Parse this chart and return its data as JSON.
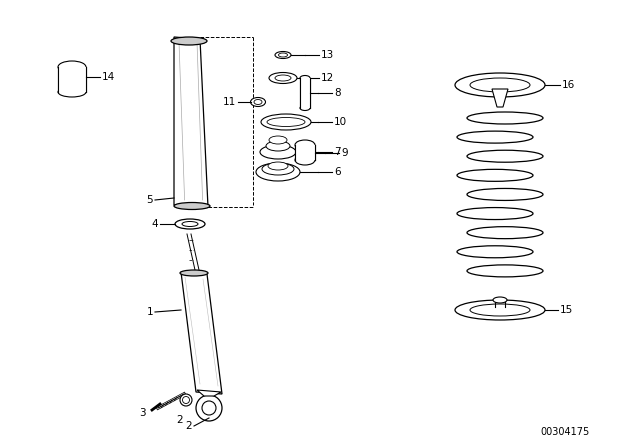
{
  "bg_color": "#ffffff",
  "line_color": "#000000",
  "catalog_number": "00304175",
  "figsize": [
    6.4,
    4.48
  ],
  "dpi": 100
}
